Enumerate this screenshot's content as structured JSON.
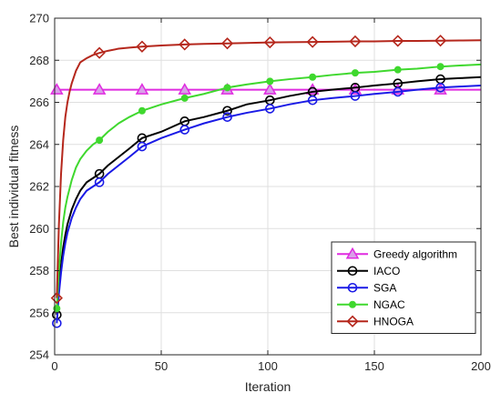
{
  "chart_data": {
    "type": "line",
    "xlabel": "Iteration",
    "ylabel": "Best individual fitness",
    "xlim": [
      0,
      200
    ],
    "ylim": [
      254,
      270
    ],
    "xticks": [
      0,
      50,
      100,
      150,
      200
    ],
    "yticks": [
      254,
      256,
      258,
      260,
      262,
      264,
      266,
      268,
      270
    ],
    "grid": true,
    "legend_position": "bottom-right",
    "series": [
      {
        "name": "Greedy algorithm",
        "color": "#e02be0",
        "marker": "triangle",
        "x": [
          0,
          20,
          40,
          60,
          80,
          100,
          120,
          140,
          160,
          180,
          200
        ],
        "y": [
          266.6,
          266.6,
          266.6,
          266.6,
          266.6,
          266.6,
          266.6,
          266.6,
          266.6,
          266.6,
          266.6
        ],
        "marker_x": [
          1,
          21,
          41,
          61,
          81,
          101,
          121,
          141,
          161,
          181
        ]
      },
      {
        "name": "IACO",
        "color": "#000000",
        "marker": "circle",
        "x": [
          1,
          2,
          3,
          4,
          5,
          6,
          8,
          10,
          12,
          15,
          18,
          21,
          25,
          30,
          35,
          41,
          50,
          61,
          70,
          81,
          90,
          101,
          110,
          121,
          130,
          141,
          150,
          161,
          170,
          181,
          190,
          200
        ],
        "y": [
          255.9,
          257.2,
          258.3,
          259.1,
          259.7,
          260.2,
          260.9,
          261.4,
          261.8,
          262.2,
          262.4,
          262.6,
          263.0,
          263.4,
          263.8,
          264.3,
          264.6,
          265.1,
          265.3,
          265.6,
          265.9,
          266.1,
          266.3,
          266.5,
          266.6,
          266.7,
          266.8,
          266.9,
          267.0,
          267.1,
          267.15,
          267.2
        ],
        "marker_x": [
          1,
          21,
          41,
          61,
          81,
          101,
          121,
          141,
          161,
          181
        ]
      },
      {
        "name": "SGA",
        "color": "#1a1ae6",
        "marker": "circle",
        "x": [
          1,
          2,
          3,
          4,
          5,
          6,
          8,
          10,
          12,
          15,
          18,
          21,
          25,
          30,
          35,
          41,
          50,
          61,
          70,
          81,
          90,
          101,
          110,
          121,
          130,
          141,
          150,
          161,
          170,
          181,
          190,
          200
        ],
        "y": [
          255.5,
          256.9,
          257.9,
          258.7,
          259.3,
          259.8,
          260.5,
          261.0,
          261.4,
          261.8,
          262.0,
          262.2,
          262.6,
          263.0,
          263.4,
          263.9,
          264.3,
          264.7,
          265.0,
          265.3,
          265.5,
          265.7,
          265.9,
          266.1,
          266.2,
          266.3,
          266.4,
          266.5,
          266.6,
          266.7,
          266.75,
          266.8
        ],
        "marker_x": [
          1,
          21,
          41,
          61,
          81,
          101,
          121,
          141,
          161,
          181
        ]
      },
      {
        "name": "NGAC",
        "color": "#3fd82e",
        "marker": "dot",
        "x": [
          1,
          2,
          3,
          4,
          5,
          6,
          8,
          10,
          12,
          15,
          18,
          21,
          25,
          30,
          35,
          41,
          50,
          61,
          70,
          81,
          90,
          101,
          110,
          121,
          130,
          141,
          150,
          161,
          170,
          181,
          190,
          200
        ],
        "y": [
          256.2,
          258.0,
          259.3,
          260.3,
          261.0,
          261.5,
          262.3,
          262.9,
          263.3,
          263.7,
          264.0,
          264.2,
          264.6,
          265.0,
          265.3,
          265.6,
          265.9,
          266.2,
          266.4,
          266.7,
          266.85,
          267.0,
          267.1,
          267.2,
          267.3,
          267.4,
          267.45,
          267.55,
          267.6,
          267.7,
          267.75,
          267.8
        ],
        "marker_x": [
          1,
          21,
          41,
          61,
          81,
          101,
          121,
          141,
          161,
          181
        ]
      },
      {
        "name": "HNOGA",
        "color": "#b5271c",
        "marker": "diamond",
        "x": [
          1,
          2,
          3,
          4,
          5,
          6,
          7,
          8,
          10,
          12,
          15,
          18,
          21,
          25,
          30,
          35,
          41,
          50,
          61,
          70,
          81,
          90,
          101,
          110,
          121,
          130,
          141,
          150,
          161,
          170,
          181,
          190,
          200
        ],
        "y": [
          256.7,
          260.2,
          262.6,
          264.2,
          265.3,
          266.0,
          266.5,
          266.9,
          267.5,
          267.9,
          268.1,
          268.25,
          268.35,
          268.45,
          268.55,
          268.6,
          268.65,
          268.7,
          268.75,
          268.78,
          268.8,
          268.82,
          268.85,
          268.86,
          268.87,
          268.88,
          268.9,
          268.9,
          268.92,
          268.92,
          268.93,
          268.94,
          268.95
        ],
        "marker_x": [
          1,
          21,
          41,
          61,
          81,
          101,
          121,
          141,
          161,
          181
        ]
      }
    ]
  }
}
